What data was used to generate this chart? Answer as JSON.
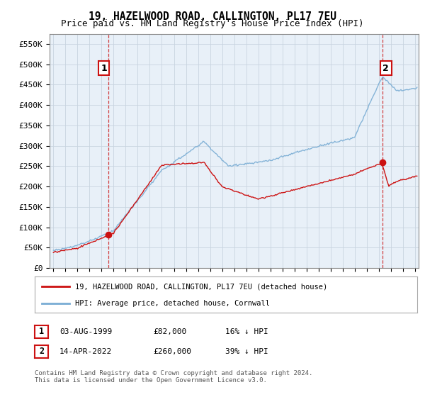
{
  "title": "19, HAZELWOOD ROAD, CALLINGTON, PL17 7EU",
  "subtitle": "Price paid vs. HM Land Registry's House Price Index (HPI)",
  "ylabel_ticks": [
    0,
    50000,
    100000,
    150000,
    200000,
    250000,
    300000,
    350000,
    400000,
    450000,
    500000,
    550000
  ],
  "ylabel_labels": [
    "£0",
    "£50K",
    "£100K",
    "£150K",
    "£200K",
    "£250K",
    "£300K",
    "£350K",
    "£400K",
    "£450K",
    "£500K",
    "£550K"
  ],
  "ylim": [
    0,
    575000
  ],
  "xlim_start": 1994.7,
  "xlim_end": 2025.3,
  "hpi_color": "#7aadd4",
  "property_color": "#cc1111",
  "sale1_year": 1999.58,
  "sale1_price": 82000,
  "sale2_year": 2022.28,
  "sale2_price": 260000,
  "legend_line1": "19, HAZELWOOD ROAD, CALLINGTON, PL17 7EU (detached house)",
  "legend_line2": "HPI: Average price, detached house, Cornwall",
  "table_row1": [
    "1",
    "03-AUG-1999",
    "£82,000",
    "16% ↓ HPI"
  ],
  "table_row2": [
    "2",
    "14-APR-2022",
    "£260,000",
    "39% ↓ HPI"
  ],
  "footnote": "Contains HM Land Registry data © Crown copyright and database right 2024.\nThis data is licensed under the Open Government Licence v3.0.",
  "background_color": "#ffffff",
  "plot_bg_color": "#e8f0f8",
  "grid_color": "#c8d4e0",
  "title_fontsize": 10.5,
  "subtitle_fontsize": 9
}
